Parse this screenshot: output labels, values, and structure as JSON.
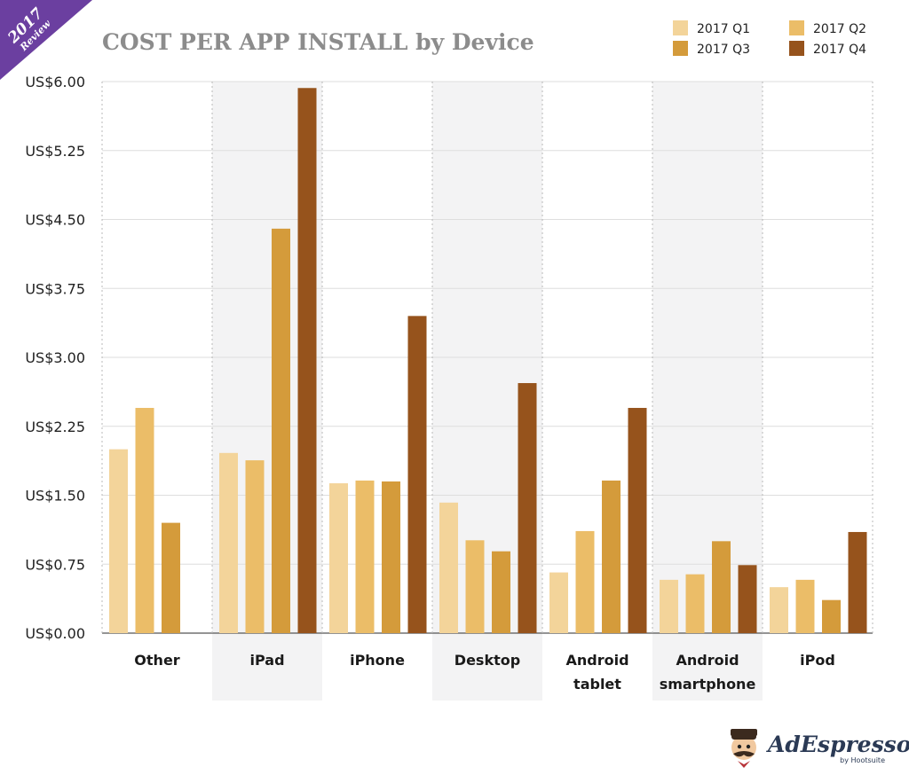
{
  "badge": {
    "year": "2017",
    "label": "Review",
    "color": "#6b3fa0"
  },
  "brand": {
    "name": "AdEspresso",
    "by": "by Hootsuite"
  },
  "chart_data": {
    "type": "bar",
    "title": "COST PER APP INSTALL by Device",
    "xlabel": "",
    "ylabel": "",
    "ylim": [
      0,
      6
    ],
    "yticks": [
      "US$0.00",
      "US$0.75",
      "US$1.50",
      "US$2.25",
      "US$3.00",
      "US$3.75",
      "US$4.50",
      "US$5.25",
      "US$6.00"
    ],
    "ytick_values": [
      0,
      0.75,
      1.5,
      2.25,
      3.0,
      3.75,
      4.5,
      5.25,
      6.0
    ],
    "categories": [
      [
        "Other"
      ],
      [
        "iPad"
      ],
      [
        "iPhone"
      ],
      [
        "Desktop"
      ],
      [
        "Android",
        "tablet"
      ],
      [
        "Android",
        "smartphone"
      ],
      [
        "iPod"
      ]
    ],
    "series": [
      {
        "name": "2017 Q1",
        "color": "#f3d49a",
        "values": [
          2.0,
          1.96,
          1.63,
          1.42,
          0.66,
          0.58,
          0.5
        ]
      },
      {
        "name": "2017 Q2",
        "color": "#ebbd68",
        "values": [
          2.45,
          1.88,
          1.66,
          1.01,
          1.11,
          0.64,
          0.58
        ]
      },
      {
        "name": "2017 Q3",
        "color": "#d49b3b",
        "values": [
          1.2,
          4.4,
          1.65,
          0.89,
          1.66,
          1.0,
          0.36
        ]
      },
      {
        "name": "2017 Q4",
        "color": "#96531c",
        "values": [
          0,
          5.93,
          3.45,
          2.72,
          2.45,
          0.74,
          1.1
        ]
      }
    ],
    "legend_position": "top-right",
    "grid": true
  }
}
